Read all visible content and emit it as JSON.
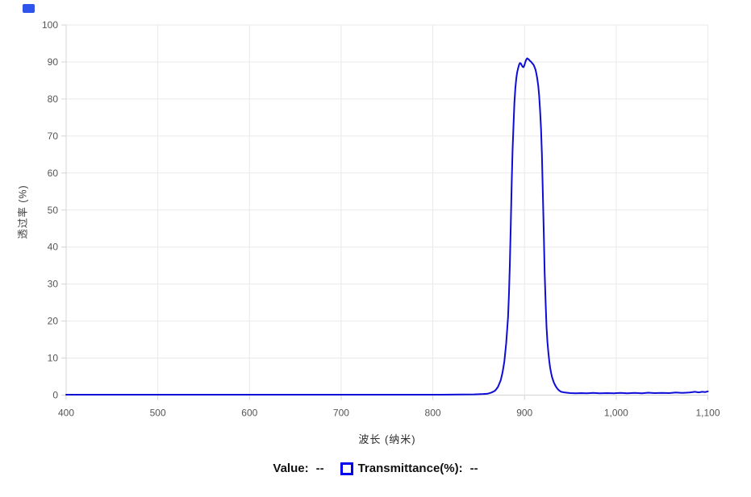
{
  "page": {
    "background": "#ffffff"
  },
  "corner_marker": {
    "color": "#2f54eb"
  },
  "chart_data": {
    "type": "line",
    "title": "",
    "xlabel": "波长 (纳米)",
    "ylabel": "透过率 (%)",
    "xlim": [
      400,
      1100
    ],
    "ylim": [
      0,
      100
    ],
    "grid": true,
    "legend_position": "bottom",
    "x_ticks": [
      400,
      500,
      600,
      700,
      800,
      900,
      1000,
      1100
    ],
    "x_tick_labels": [
      "400",
      "500",
      "600",
      "700",
      "800",
      "900",
      "1,000",
      "1,100"
    ],
    "y_ticks": [
      0,
      10,
      20,
      30,
      40,
      50,
      60,
      70,
      80,
      90,
      100
    ],
    "y_tick_labels": [
      "0",
      "10",
      "20",
      "30",
      "40",
      "50",
      "60",
      "70",
      "80",
      "90",
      "100"
    ],
    "line_color": "#0d0dd8",
    "grid_color": "#e9e9e9",
    "axis_color": "#d4d4d4",
    "tick_label_color": "#555555",
    "series": [
      {
        "name": "Transmittance(%)",
        "points": [
          [
            400,
            0.1
          ],
          [
            430,
            0.1
          ],
          [
            460,
            0.1
          ],
          [
            490,
            0.1
          ],
          [
            520,
            0.1
          ],
          [
            550,
            0.1
          ],
          [
            580,
            0.1
          ],
          [
            610,
            0.1
          ],
          [
            640,
            0.1
          ],
          [
            670,
            0.1
          ],
          [
            700,
            0.1
          ],
          [
            730,
            0.1
          ],
          [
            760,
            0.1
          ],
          [
            790,
            0.1
          ],
          [
            810,
            0.1
          ],
          [
            830,
            0.15
          ],
          [
            845,
            0.2
          ],
          [
            855,
            0.3
          ],
          [
            860,
            0.4
          ],
          [
            864,
            0.7
          ],
          [
            868,
            1.2
          ],
          [
            871,
            2.2
          ],
          [
            874,
            4.0
          ],
          [
            876,
            6.0
          ],
          [
            878,
            9.0
          ],
          [
            880,
            14.0
          ],
          [
            882,
            21.0
          ],
          [
            883,
            27.0
          ],
          [
            884,
            35.0
          ],
          [
            885,
            46.0
          ],
          [
            886,
            57.0
          ],
          [
            887,
            66.0
          ],
          [
            888,
            73.0
          ],
          [
            889,
            79.0
          ],
          [
            890,
            83.0
          ],
          [
            891,
            85.5
          ],
          [
            892,
            87.2
          ],
          [
            893,
            88.3
          ],
          [
            894,
            89.2
          ],
          [
            895,
            89.7
          ],
          [
            896,
            89.6
          ],
          [
            897,
            89.1
          ],
          [
            898,
            88.7
          ],
          [
            899,
            88.6
          ],
          [
            900,
            89.2
          ],
          [
            901,
            90.1
          ],
          [
            902,
            90.7
          ],
          [
            903,
            91.0
          ],
          [
            904,
            90.8
          ],
          [
            905,
            90.6
          ],
          [
            906,
            90.3
          ],
          [
            907,
            90.1
          ],
          [
            908,
            89.8
          ],
          [
            909,
            89.5
          ],
          [
            910,
            89.2
          ],
          [
            911,
            88.6
          ],
          [
            912,
            87.9
          ],
          [
            913,
            86.8
          ],
          [
            914,
            85.4
          ],
          [
            915,
            83.5
          ],
          [
            916,
            80.8
          ],
          [
            917,
            77.0
          ],
          [
            918,
            72.0
          ],
          [
            919,
            65.0
          ],
          [
            920,
            55.0
          ],
          [
            921,
            44.0
          ],
          [
            922,
            33.0
          ],
          [
            923,
            25.0
          ],
          [
            924,
            18.5
          ],
          [
            925,
            14.5
          ],
          [
            926,
            11.5
          ],
          [
            927,
            9.2
          ],
          [
            928,
            7.4
          ],
          [
            929,
            6.0
          ],
          [
            930,
            4.9
          ],
          [
            932,
            3.4
          ],
          [
            934,
            2.4
          ],
          [
            936,
            1.7
          ],
          [
            938,
            1.2
          ],
          [
            940,
            0.9
          ],
          [
            944,
            0.7
          ],
          [
            950,
            0.55
          ],
          [
            956,
            0.5
          ],
          [
            962,
            0.55
          ],
          [
            968,
            0.5
          ],
          [
            975,
            0.6
          ],
          [
            982,
            0.5
          ],
          [
            990,
            0.55
          ],
          [
            998,
            0.5
          ],
          [
            1005,
            0.6
          ],
          [
            1012,
            0.5
          ],
          [
            1020,
            0.6
          ],
          [
            1028,
            0.5
          ],
          [
            1035,
            0.65
          ],
          [
            1042,
            0.55
          ],
          [
            1050,
            0.6
          ],
          [
            1058,
            0.55
          ],
          [
            1065,
            0.7
          ],
          [
            1072,
            0.6
          ],
          [
            1080,
            0.7
          ],
          [
            1086,
            0.9
          ],
          [
            1090,
            0.75
          ],
          [
            1094,
            0.9
          ],
          [
            1097,
            0.8
          ],
          [
            1100,
            1.0
          ]
        ]
      }
    ]
  },
  "legend": {
    "value_label": "Value:",
    "value_text": "--",
    "series_label": "Transmittance(%):",
    "series_value": "--",
    "marker_color": "#0000ee"
  }
}
